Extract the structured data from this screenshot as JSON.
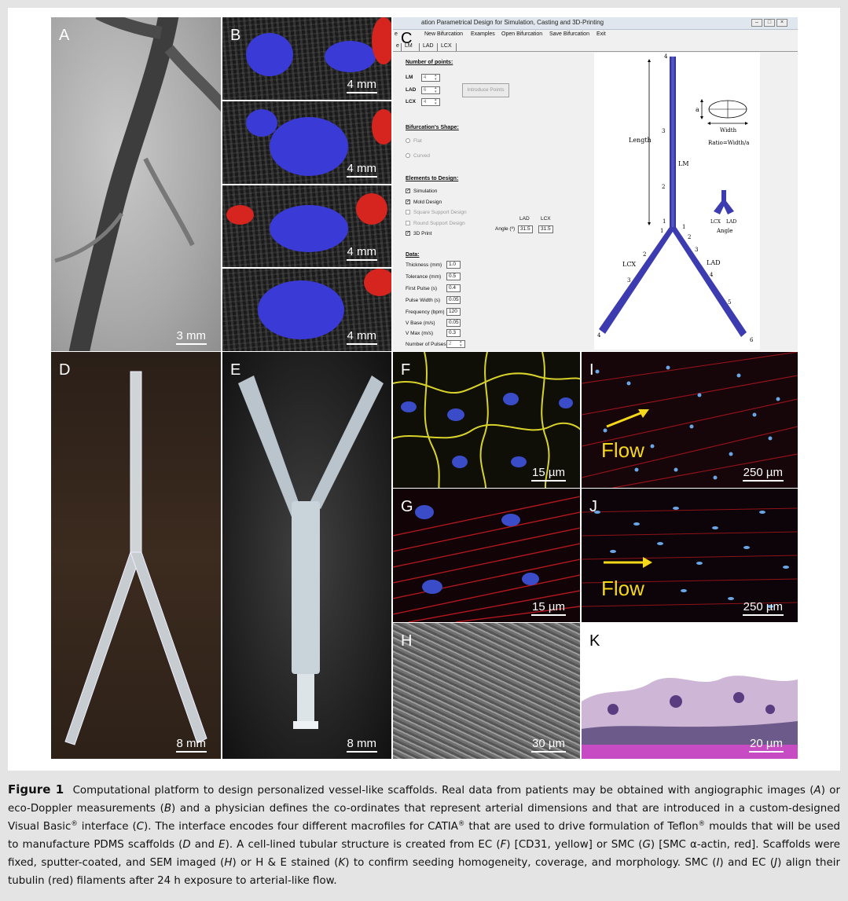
{
  "panels": {
    "a": {
      "letter": "A",
      "scale": "3 mm"
    },
    "b": {
      "letter": "B",
      "scales": [
        "4 mm",
        "4 mm",
        "4 mm",
        "4 mm"
      ]
    },
    "c": {
      "letter": "C"
    },
    "d": {
      "letter": "D",
      "scale": "8 mm"
    },
    "e": {
      "letter": "E",
      "scale": "8 mm"
    },
    "f": {
      "letter": "F",
      "scale": "15 µm"
    },
    "g": {
      "letter": "G",
      "scale": "15 µm"
    },
    "h": {
      "letter": "H",
      "scale": "30 µm"
    },
    "i": {
      "letter": "I",
      "scale": "250 µm",
      "flow": "Flow"
    },
    "j": {
      "letter": "J",
      "scale": "250 µm",
      "flow": "Flow"
    },
    "k": {
      "letter": "K",
      "scale": "20 µm"
    }
  },
  "app": {
    "title": "ation Parametrical Design for Simulation, Casting and 3D-Printing",
    "window_buttons": [
      "–",
      "□",
      "×"
    ],
    "menu": [
      "e",
      "New Bifurcation",
      "Examples",
      "Open Bifurcation",
      "Save Bifurcation",
      "Exit"
    ],
    "tabs": [
      "e",
      "LM",
      "LAD",
      "LCX"
    ],
    "points_section": "Number of points:",
    "points": [
      {
        "label": "LM",
        "value": "4"
      },
      {
        "label": "LAD",
        "value": "6"
      },
      {
        "label": "LCX",
        "value": "4"
      }
    ],
    "introduce_button": "Introduce Points",
    "shape_section": "Bifurcation's Shape:",
    "shape_options": [
      "Flat",
      "Curved"
    ],
    "elements_section": "Elements to Design:",
    "elements": [
      {
        "label": "Simulation",
        "checked": true,
        "enabled": true
      },
      {
        "label": "Mold Design",
        "checked": true,
        "enabled": true
      },
      {
        "label": "Square Support Design",
        "checked": false,
        "enabled": false
      },
      {
        "label": "Round Support Design",
        "checked": false,
        "enabled": false
      },
      {
        "label": "3D Print",
        "checked": true,
        "enabled": true
      }
    ],
    "angle": {
      "label": "Angle (º)",
      "col_lad": "LAD",
      "col_lcx": "LCX",
      "lad": "31.5",
      "lcx": "31.5"
    },
    "data_section": "Data:",
    "data_fields": [
      {
        "label": "Thickness (mm)",
        "value": "1.0"
      },
      {
        "label": "Tolerance (mm)",
        "value": "0.5"
      },
      {
        "label": "First Pulse (s)",
        "value": "0.4"
      },
      {
        "label": "Pulse Width (s)",
        "value": "0.05"
      },
      {
        "label": "Frequency (bpm)",
        "value": "120"
      },
      {
        "label": "V Base (m/s)",
        "value": "0.05"
      },
      {
        "label": "V Max (m/s)",
        "value": "0.3"
      },
      {
        "label": "Number of Pulses",
        "value": "2"
      }
    ],
    "diagram": {
      "length": "Length",
      "lm": "LM",
      "lad": "LAD",
      "lcx": "LCX",
      "a": "a",
      "width": "Width",
      "ratio": "Ratio=Width/a",
      "angle": "Angle",
      "inset_lcx": "LCX",
      "inset_lad": "LAD",
      "lm_points": [
        "4",
        "3",
        "2",
        "1"
      ],
      "lcx_points": [
        "1",
        "2",
        "3",
        "4"
      ],
      "lad_points": [
        "1",
        "2",
        "3",
        "4",
        "5",
        "6"
      ]
    }
  },
  "caption": {
    "label": "Figure 1",
    "p1": "Computational platform to design personalized vessel-like scaffolds. Real data from patients may be obtained with angiographic images (",
    "a": "A",
    "p2": ") or eco-Doppler measurements (",
    "b": "B",
    "p3": ") and a physician defines the co-ordinates that represent arterial dimensions and that are introduced in a custom-designed Visual Basic",
    "reg": "®",
    "p4": " interface (",
    "c": "C",
    "p5": "). The interface encodes four different macrofiles for CATIA",
    "p6": " that are used to drive formulation of Teflon",
    "p7": " moulds that will be used to manufacture PDMS scaffolds (",
    "d": "D",
    "and": " and ",
    "e": "E",
    "p8": "). A cell-lined tubular structure is created from EC (",
    "f": "F",
    "p9": ") [CD31, yellow] or SMC (",
    "g": "G",
    "p10": ") [SMC α-actin, red]. Scaffolds were fixed, sputter-coated, and SEM imaged (",
    "h": "H",
    "p11": ") or H & E stained (",
    "k": "K",
    "p12": ") to confirm seeding homogeneity, coverage, and morphology. SMC (",
    "i": "I",
    "p13": ") and EC (",
    "j": "J",
    "p14": ") align their tubulin (red) filaments after 24 h exposure to arterial-like flow."
  }
}
